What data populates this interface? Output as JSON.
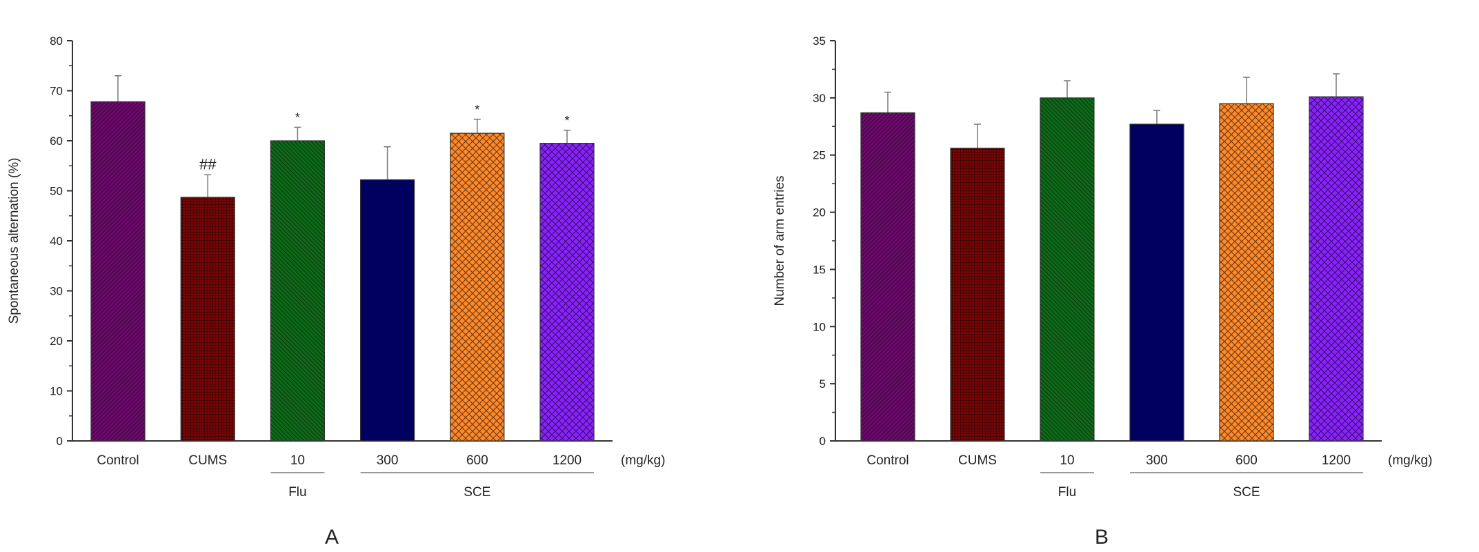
{
  "chart_data": [
    {
      "type": "bar",
      "panel_label": "A",
      "ylabel": "Spontaneous alternation (%)",
      "ylim": [
        0,
        80
      ],
      "yticks": [
        "0",
        "10",
        "20",
        "30",
        "40",
        "50",
        "60",
        "70",
        "80"
      ],
      "categories": [
        "Control",
        "CUMS",
        "10",
        "300",
        "600",
        "1200"
      ],
      "unit_label": "(mg/kg)",
      "groups": [
        {
          "label": "Flu",
          "from": 2,
          "to": 2
        },
        {
          "label": "SCE",
          "from": 3,
          "to": 5
        }
      ],
      "values": [
        67.8,
        48.7,
        60.0,
        52.2,
        61.5,
        59.5
      ],
      "errors": [
        5.2,
        4.5,
        2.7,
        6.6,
        2.8,
        2.6
      ],
      "annotations": [
        "",
        "##",
        "*",
        "",
        "*",
        "*"
      ],
      "colors": [
        "#6b0a6b",
        "#7a0606",
        "#0f6b1a",
        "#00005e",
        "#ff8a2a",
        "#8a22ff"
      ],
      "patterns": [
        "diag-right",
        "grid",
        "diag-left",
        "solid",
        "crosshatch",
        "crosshatch"
      ],
      "grid": false
    },
    {
      "type": "bar",
      "panel_label": "B",
      "ylabel": "Number of arm entries",
      "ylim": [
        0,
        35
      ],
      "yticks": [
        "0",
        "5",
        "10",
        "15",
        "20",
        "25",
        "30",
        "35"
      ],
      "categories": [
        "Control",
        "CUMS",
        "10",
        "300",
        "600",
        "1200"
      ],
      "unit_label": "(mg/kg)",
      "groups": [
        {
          "label": "Flu",
          "from": 2,
          "to": 2
        },
        {
          "label": "SCE",
          "from": 3,
          "to": 5
        }
      ],
      "values": [
        28.7,
        25.6,
        30.0,
        27.7,
        29.5,
        30.1
      ],
      "errors": [
        1.8,
        2.1,
        1.5,
        1.2,
        2.3,
        2.0
      ],
      "annotations": [
        "",
        "",
        "",
        "",
        "",
        ""
      ],
      "colors": [
        "#6b0a6b",
        "#7a0606",
        "#0f6b1a",
        "#00005e",
        "#ff8a2a",
        "#8a22ff"
      ],
      "patterns": [
        "diag-right",
        "grid",
        "diag-left",
        "solid",
        "crosshatch",
        "crosshatch"
      ],
      "grid": false
    }
  ]
}
